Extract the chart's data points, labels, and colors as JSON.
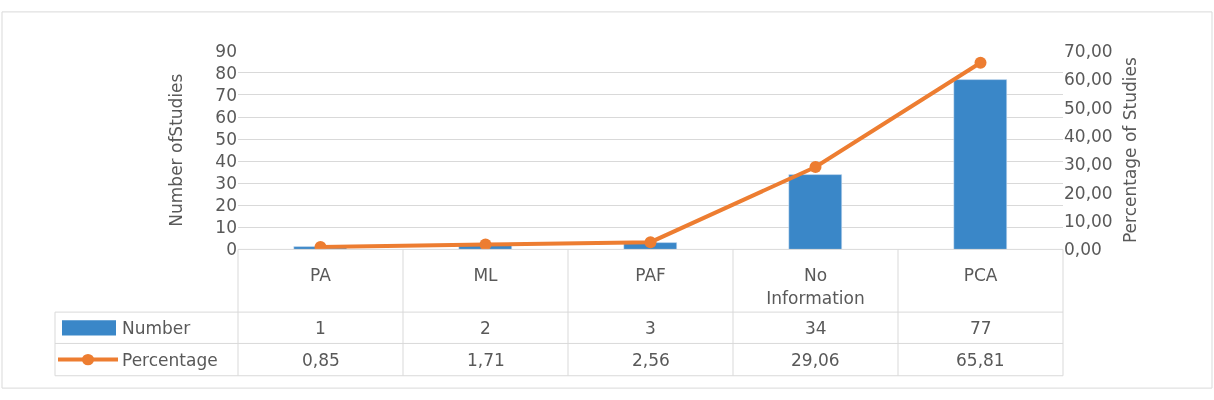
{
  "chart_data": {
    "type": "bar",
    "categories": [
      "PA",
      "ML",
      "PAF",
      "No Information",
      "PCA"
    ],
    "ylabel": "Number ofStudies",
    "y2label": "Percentage of Studies",
    "ylim": [
      0,
      90
    ],
    "yticks": [
      0,
      10,
      20,
      30,
      40,
      50,
      60,
      70,
      80,
      90
    ],
    "y2lim": [
      0,
      70
    ],
    "y2ticks": [
      {
        "value": 0,
        "label": "0,00"
      },
      {
        "value": 10,
        "label": "10,00"
      },
      {
        "value": 20,
        "label": "20,00"
      },
      {
        "value": 30,
        "label": "30,00"
      },
      {
        "value": 40,
        "label": "40,00"
      },
      {
        "value": 50,
        "label": "50,00"
      },
      {
        "value": 60,
        "label": "60,00"
      },
      {
        "value": 70,
        "label": "70,00"
      }
    ],
    "grid": "y",
    "legend": "bottom left",
    "marker": "circle",
    "series": [
      {
        "name": "Number",
        "color": "#3a87c8",
        "values": [
          1,
          2,
          3,
          34,
          77
        ],
        "value_labels": [
          "1",
          "2",
          "3",
          "34",
          "77"
        ]
      },
      {
        "name": "Percentage",
        "type": "line",
        "axis": "y2",
        "color": "#ed7d31",
        "values": [
          0.85,
          1.71,
          2.56,
          29.06,
          65.81
        ],
        "value_labels": [
          "0,85",
          "1,71",
          "2,56",
          "29,06",
          "65,81"
        ]
      }
    ]
  }
}
